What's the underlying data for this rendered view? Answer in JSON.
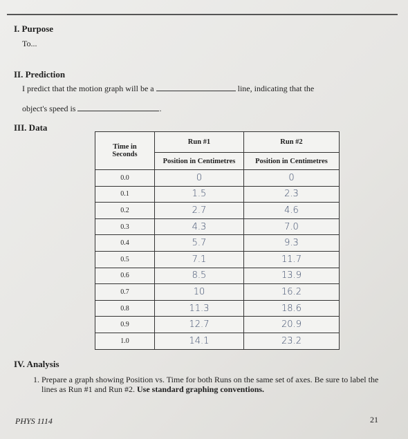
{
  "section1": {
    "heading": "I. Purpose",
    "text": "To..."
  },
  "section2": {
    "heading": "II. Prediction",
    "line1_start": "I predict that the motion graph will be a",
    "line1_end": "line, indicating that the",
    "line2_start": "object's speed is",
    "line2_end": "."
  },
  "section3": {
    "heading": "III. Data"
  },
  "table": {
    "header": {
      "time": "Time in Seconds",
      "run1": "Run #1",
      "run2": "Run #2",
      "run1_unit": "Position in Centimetres",
      "run2_unit": "Position in Centimetres"
    },
    "rows": [
      [
        "0.0",
        "0",
        "0"
      ],
      [
        "0.1",
        "1.5",
        "2.3"
      ],
      [
        "0.2",
        "2.7",
        "4.6"
      ],
      [
        "0.3",
        "4.3",
        "7.0"
      ],
      [
        "0.4",
        "5.7",
        "9.3"
      ],
      [
        "0.5",
        "7.1",
        "11.7"
      ],
      [
        "0.6",
        "8.5",
        "13.9"
      ],
      [
        "0.7",
        "10",
        "16.2"
      ],
      [
        "0.8",
        "11.3",
        "18.6"
      ],
      [
        "0.9",
        "12.7",
        "20.9"
      ],
      [
        "1.0",
        "14.1",
        "23.2"
      ]
    ]
  },
  "section4": {
    "heading": "IV. Analysis",
    "item": "1. Prepare a graph showing Position vs. Time for both Runs on the same set of axes. Be sure to label the lines as Run #1 and Run #2.",
    "item_bold": "Use standard graphing conventions."
  },
  "footer": {
    "course": "PHYS 1114",
    "page": "21"
  }
}
